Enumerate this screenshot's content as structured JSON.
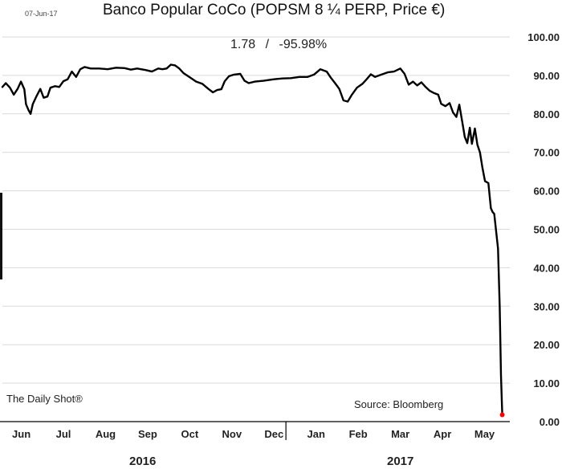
{
  "header": {
    "date": "07-Jun-17",
    "title": "Banco Popular CoCo (POPSM 8 ¼ PERP, Price €)",
    "last_value": "1.78",
    "separator": "/",
    "change": "-95.98%"
  },
  "footer": {
    "brand": "The Daily Shot®",
    "source": "Source: Bloomberg",
    "years": [
      "2016",
      "2017"
    ]
  },
  "colors": {
    "line": "#000000",
    "grid": "#d9d9d9",
    "endpoint": "#ff0000"
  },
  "chart_data": {
    "type": "line",
    "title": "Banco Popular CoCo (POPSM 8 ¼ PERP, Price €)",
    "xlabel": "",
    "ylabel": "",
    "ylim": [
      0,
      100
    ],
    "y_ticks": [
      "0.00",
      "10.00",
      "20.00",
      "30.00",
      "40.00",
      "50.00",
      "60.00",
      "70.00",
      "80.00",
      "90.00",
      "100.00"
    ],
    "x_ticks": [
      "Jun",
      "Jul",
      "Aug",
      "Sep",
      "Oct",
      "Nov",
      "Dec",
      "Jan",
      "Feb",
      "Mar",
      "Apr",
      "May"
    ],
    "x_unit": "months since 1-Jun-2016",
    "grid": true,
    "axis_side": "right",
    "series": [
      {
        "name": "",
        "points": [
          [
            0.0,
            87.0
          ],
          [
            0.08,
            88.0
          ],
          [
            0.18,
            86.8
          ],
          [
            0.27,
            85.0
          ],
          [
            0.36,
            86.5
          ],
          [
            0.44,
            88.4
          ],
          [
            0.52,
            86.4
          ],
          [
            0.56,
            82.5
          ],
          [
            0.62,
            81.0
          ],
          [
            0.67,
            80.0
          ],
          [
            0.72,
            82.5
          ],
          [
            0.8,
            84.4
          ],
          [
            0.9,
            86.5
          ],
          [
            0.98,
            84.2
          ],
          [
            1.07,
            84.5
          ],
          [
            1.14,
            86.8
          ],
          [
            1.25,
            87.2
          ],
          [
            1.35,
            87.0
          ],
          [
            1.45,
            88.5
          ],
          [
            1.55,
            89.0
          ],
          [
            1.65,
            91.0
          ],
          [
            1.75,
            89.6
          ],
          [
            1.85,
            91.6
          ],
          [
            1.95,
            92.2
          ],
          [
            2.1,
            91.8
          ],
          [
            2.3,
            91.8
          ],
          [
            2.5,
            91.6
          ],
          [
            2.7,
            92.0
          ],
          [
            2.9,
            91.9
          ],
          [
            3.05,
            91.5
          ],
          [
            3.2,
            91.8
          ],
          [
            3.4,
            91.4
          ],
          [
            3.55,
            91.0
          ],
          [
            3.7,
            91.8
          ],
          [
            3.8,
            91.6
          ],
          [
            3.9,
            91.8
          ],
          [
            4.0,
            92.8
          ],
          [
            4.1,
            92.6
          ],
          [
            4.2,
            91.8
          ],
          [
            4.3,
            90.6
          ],
          [
            4.45,
            89.5
          ],
          [
            4.6,
            88.4
          ],
          [
            4.75,
            87.8
          ],
          [
            4.9,
            86.4
          ],
          [
            5.0,
            85.6
          ],
          [
            5.1,
            86.2
          ],
          [
            5.2,
            86.4
          ],
          [
            5.28,
            88.5
          ],
          [
            5.38,
            89.8
          ],
          [
            5.5,
            90.2
          ],
          [
            5.65,
            90.4
          ],
          [
            5.75,
            88.6
          ],
          [
            5.85,
            88.0
          ],
          [
            6.0,
            88.4
          ],
          [
            6.2,
            88.6
          ],
          [
            6.45,
            89.0
          ],
          [
            6.65,
            89.2
          ],
          [
            6.85,
            89.3
          ],
          [
            7.05,
            89.6
          ],
          [
            7.25,
            89.6
          ],
          [
            7.4,
            90.2
          ],
          [
            7.55,
            91.6
          ],
          [
            7.7,
            91.0
          ],
          [
            7.8,
            89.4
          ],
          [
            7.9,
            88.0
          ],
          [
            8.0,
            86.5
          ],
          [
            8.1,
            83.5
          ],
          [
            8.2,
            83.2
          ],
          [
            8.3,
            85.0
          ],
          [
            8.42,
            86.8
          ],
          [
            8.55,
            87.8
          ],
          [
            8.65,
            89.0
          ],
          [
            8.75,
            90.3
          ],
          [
            8.85,
            89.6
          ],
          [
            9.0,
            90.2
          ],
          [
            9.15,
            90.8
          ],
          [
            9.3,
            91.0
          ],
          [
            9.45,
            91.8
          ],
          [
            9.55,
            90.4
          ],
          [
            9.65,
            87.6
          ],
          [
            9.75,
            88.4
          ],
          [
            9.85,
            87.4
          ],
          [
            9.95,
            88.2
          ],
          [
            10.05,
            87.0
          ],
          [
            10.15,
            86.0
          ],
          [
            10.25,
            85.4
          ],
          [
            10.35,
            85.0
          ],
          [
            10.42,
            82.6
          ],
          [
            10.52,
            82.0
          ],
          [
            10.62,
            82.8
          ],
          [
            10.7,
            80.4
          ],
          [
            10.78,
            79.2
          ],
          [
            10.85,
            82.4
          ],
          [
            10.92,
            78.0
          ],
          [
            10.98,
            74.0
          ],
          [
            11.04,
            72.4
          ],
          [
            11.1,
            76.4
          ],
          [
            11.15,
            72.2
          ],
          [
            11.22,
            76.2
          ],
          [
            11.28,
            72.0
          ],
          [
            11.34,
            70.0
          ],
          [
            11.4,
            66.0
          ],
          [
            11.46,
            62.5
          ],
          [
            11.54,
            62.0
          ],
          [
            11.6,
            55.5
          ],
          [
            11.64,
            54.5
          ],
          [
            11.68,
            54.0
          ],
          [
            11.73,
            49.0
          ],
          [
            11.77,
            45.0
          ],
          [
            11.81,
            30.0
          ],
          [
            11.84,
            12.0
          ],
          [
            11.87,
            1.78
          ]
        ]
      }
    ],
    "last_point": {
      "x": 11.87,
      "y": 1.78
    },
    "annotations": [
      "1.78",
      "/",
      "-95.98%"
    ]
  }
}
